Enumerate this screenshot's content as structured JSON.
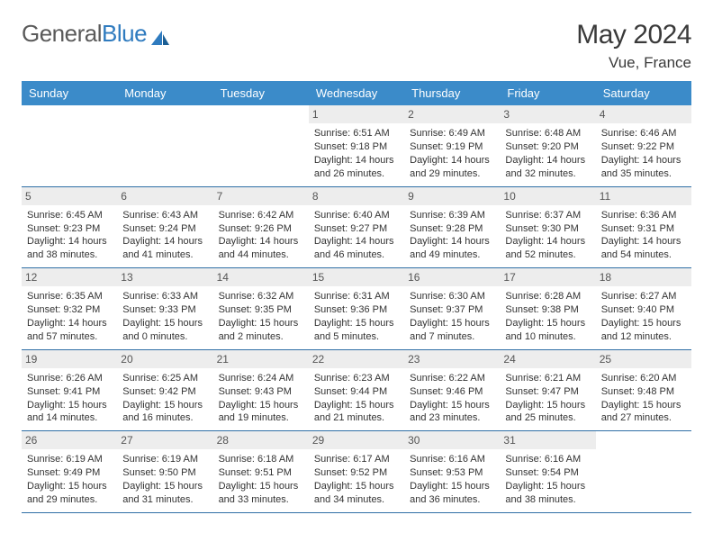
{
  "brand": {
    "part1": "General",
    "part2": "Blue"
  },
  "title": "May 2024",
  "location": "Vue, France",
  "colors": {
    "header_bar": "#3b8bc9",
    "week_border": "#2f6fa6",
    "daynum_bg": "#ededed",
    "text": "#333333",
    "brand_gray": "#5a5a5a",
    "brand_blue": "#2f7bbf"
  },
  "dayNames": [
    "Sunday",
    "Monday",
    "Tuesday",
    "Wednesday",
    "Thursday",
    "Friday",
    "Saturday"
  ],
  "weeks": [
    [
      null,
      null,
      null,
      {
        "n": "1",
        "sr": "6:51 AM",
        "ss": "9:18 PM",
        "dl": "14 hours and 26 minutes."
      },
      {
        "n": "2",
        "sr": "6:49 AM",
        "ss": "9:19 PM",
        "dl": "14 hours and 29 minutes."
      },
      {
        "n": "3",
        "sr": "6:48 AM",
        "ss": "9:20 PM",
        "dl": "14 hours and 32 minutes."
      },
      {
        "n": "4",
        "sr": "6:46 AM",
        "ss": "9:22 PM",
        "dl": "14 hours and 35 minutes."
      }
    ],
    [
      {
        "n": "5",
        "sr": "6:45 AM",
        "ss": "9:23 PM",
        "dl": "14 hours and 38 minutes."
      },
      {
        "n": "6",
        "sr": "6:43 AM",
        "ss": "9:24 PM",
        "dl": "14 hours and 41 minutes."
      },
      {
        "n": "7",
        "sr": "6:42 AM",
        "ss": "9:26 PM",
        "dl": "14 hours and 44 minutes."
      },
      {
        "n": "8",
        "sr": "6:40 AM",
        "ss": "9:27 PM",
        "dl": "14 hours and 46 minutes."
      },
      {
        "n": "9",
        "sr": "6:39 AM",
        "ss": "9:28 PM",
        "dl": "14 hours and 49 minutes."
      },
      {
        "n": "10",
        "sr": "6:37 AM",
        "ss": "9:30 PM",
        "dl": "14 hours and 52 minutes."
      },
      {
        "n": "11",
        "sr": "6:36 AM",
        "ss": "9:31 PM",
        "dl": "14 hours and 54 minutes."
      }
    ],
    [
      {
        "n": "12",
        "sr": "6:35 AM",
        "ss": "9:32 PM",
        "dl": "14 hours and 57 minutes."
      },
      {
        "n": "13",
        "sr": "6:33 AM",
        "ss": "9:33 PM",
        "dl": "15 hours and 0 minutes."
      },
      {
        "n": "14",
        "sr": "6:32 AM",
        "ss": "9:35 PM",
        "dl": "15 hours and 2 minutes."
      },
      {
        "n": "15",
        "sr": "6:31 AM",
        "ss": "9:36 PM",
        "dl": "15 hours and 5 minutes."
      },
      {
        "n": "16",
        "sr": "6:30 AM",
        "ss": "9:37 PM",
        "dl": "15 hours and 7 minutes."
      },
      {
        "n": "17",
        "sr": "6:28 AM",
        "ss": "9:38 PM",
        "dl": "15 hours and 10 minutes."
      },
      {
        "n": "18",
        "sr": "6:27 AM",
        "ss": "9:40 PM",
        "dl": "15 hours and 12 minutes."
      }
    ],
    [
      {
        "n": "19",
        "sr": "6:26 AM",
        "ss": "9:41 PM",
        "dl": "15 hours and 14 minutes."
      },
      {
        "n": "20",
        "sr": "6:25 AM",
        "ss": "9:42 PM",
        "dl": "15 hours and 16 minutes."
      },
      {
        "n": "21",
        "sr": "6:24 AM",
        "ss": "9:43 PM",
        "dl": "15 hours and 19 minutes."
      },
      {
        "n": "22",
        "sr": "6:23 AM",
        "ss": "9:44 PM",
        "dl": "15 hours and 21 minutes."
      },
      {
        "n": "23",
        "sr": "6:22 AM",
        "ss": "9:46 PM",
        "dl": "15 hours and 23 minutes."
      },
      {
        "n": "24",
        "sr": "6:21 AM",
        "ss": "9:47 PM",
        "dl": "15 hours and 25 minutes."
      },
      {
        "n": "25",
        "sr": "6:20 AM",
        "ss": "9:48 PM",
        "dl": "15 hours and 27 minutes."
      }
    ],
    [
      {
        "n": "26",
        "sr": "6:19 AM",
        "ss": "9:49 PM",
        "dl": "15 hours and 29 minutes."
      },
      {
        "n": "27",
        "sr": "6:19 AM",
        "ss": "9:50 PM",
        "dl": "15 hours and 31 minutes."
      },
      {
        "n": "28",
        "sr": "6:18 AM",
        "ss": "9:51 PM",
        "dl": "15 hours and 33 minutes."
      },
      {
        "n": "29",
        "sr": "6:17 AM",
        "ss": "9:52 PM",
        "dl": "15 hours and 34 minutes."
      },
      {
        "n": "30",
        "sr": "6:16 AM",
        "ss": "9:53 PM",
        "dl": "15 hours and 36 minutes."
      },
      {
        "n": "31",
        "sr": "6:16 AM",
        "ss": "9:54 PM",
        "dl": "15 hours and 38 minutes."
      },
      null
    ]
  ],
  "labels": {
    "sunrise": "Sunrise:",
    "sunset": "Sunset:",
    "daylight": "Daylight:"
  }
}
